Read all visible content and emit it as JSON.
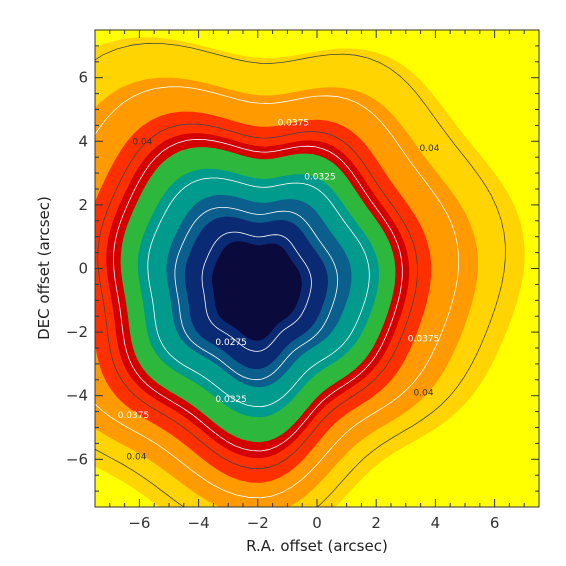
{
  "chart_data": {
    "type": "heatmap",
    "title": "",
    "xlabel": "R.A. offset (arcsec)",
    "ylabel": "DEC offset (arcsec)",
    "xlim": [
      -7.5,
      7.5
    ],
    "ylim": [
      -7.5,
      7.5
    ],
    "x_ticks": [
      -6,
      -4,
      -2,
      0,
      2,
      4,
      6
    ],
    "y_ticks": [
      6,
      4,
      2,
      0,
      -2,
      -4,
      -6
    ],
    "x_tick_labels": [
      "−6",
      "−4",
      "−2",
      "0",
      "2",
      "4",
      "6"
    ],
    "y_tick_labels": [
      "6",
      "4",
      "2",
      "0",
      "−2",
      "−4",
      "−6"
    ],
    "grid": false,
    "colormap": [
      "#ffff00",
      "#ffd400",
      "#ff9a00",
      "#ff3000",
      "#d40000",
      "#2db83d",
      "#009b8c",
      "#0b5f8c",
      "#0a2a73",
      "#0a0a3c"
    ],
    "contour_labels": [
      {
        "text": "0.04",
        "x": -5.9,
        "y": 3.9,
        "color": "#333333"
      },
      {
        "text": "0.0375",
        "x": -0.8,
        "y": 4.5,
        "color": "#ffffff"
      },
      {
        "text": "0.04",
        "x": 3.8,
        "y": 3.7,
        "color": "#333333"
      },
      {
        "text": "0.0325",
        "x": 0.1,
        "y": 2.8,
        "color": "#ffffff"
      },
      {
        "text": "0.0375",
        "x": 3.6,
        "y": -2.3,
        "color": "#ffffff"
      },
      {
        "text": "0.04",
        "x": 3.6,
        "y": -4.0,
        "color": "#333333"
      },
      {
        "text": "0.0275",
        "x": -2.9,
        "y": -2.4,
        "color": "#ffffff"
      },
      {
        "text": "0.0325",
        "x": -2.9,
        "y": -4.2,
        "color": "#ffffff"
      },
      {
        "text": "0.0375",
        "x": -6.2,
        "y": -4.7,
        "color": "#ffffff"
      },
      {
        "text": "0.04",
        "x": -6.1,
        "y": -6.0,
        "color": "#333333"
      }
    ]
  }
}
